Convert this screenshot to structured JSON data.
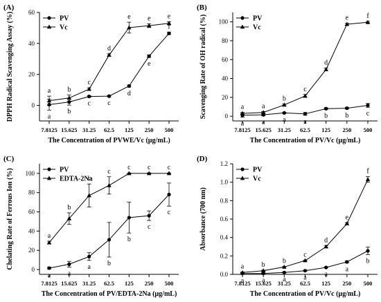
{
  "chart_data": [
    {
      "panel": "(A)",
      "type": "line",
      "categories": [
        "7.8125",
        "15.625",
        "31.25",
        "62.5",
        "125",
        "250",
        "500"
      ],
      "ylabel": "DPPH Radical Scavenging Assay (%)",
      "xlabel": "The Concentration of PVWE/Vc (µg/mL)",
      "ylim": [
        -10,
        60
      ],
      "yticks": [
        0,
        20,
        40,
        60
      ],
      "legend": "top-left",
      "series": [
        {
          "name": "PV",
          "marker": "circle",
          "values": [
            0.5,
            2.2,
            5.8,
            6.0,
            12.5,
            31.8,
            46.5
          ],
          "errors": [
            3.5,
            2.0,
            0.5,
            0.5,
            0.7,
            0.8,
            0.8
          ],
          "letters": [
            "a",
            "b",
            "c",
            "c",
            "d",
            "e",
            "f"
          ],
          "letter_pos": [
            "below",
            "below",
            "below",
            "below",
            "below",
            "below",
            "above"
          ]
        },
        {
          "name": "Vc",
          "marker": "triangle",
          "values": [
            3.0,
            4.8,
            10.5,
            32.5,
            50.2,
            51.5,
            53.0
          ],
          "errors": [
            3.0,
            2.0,
            0.8,
            0.8,
            3.5,
            1.2,
            1.0
          ],
          "letters": [
            "a",
            "b",
            "c",
            "d",
            "e",
            "e",
            "e"
          ],
          "letter_pos": [
            "above",
            "above",
            "above",
            "above",
            "above",
            "above",
            "above"
          ]
        }
      ]
    },
    {
      "panel": "(B)",
      "type": "line",
      "categories": [
        "7.8125",
        "15.625",
        "31.25",
        "62.5",
        "125",
        "250",
        "500"
      ],
      "ylabel": "Scavenging Rate of OH radical (%)",
      "xlabel": "The Concentration of PV/Vc (µg/mL)",
      "ylim": [
        -5,
        110
      ],
      "yticks": [
        0,
        20,
        40,
        60,
        80,
        100
      ],
      "legend": "top-left",
      "series": [
        {
          "name": "PV",
          "marker": "circle",
          "values": [
            1.0,
            1.5,
            3.5,
            2.5,
            8.0,
            8.5,
            11.5
          ],
          "errors": [
            2.0,
            1.0,
            0.5,
            1.5,
            1.0,
            1.0,
            2.0
          ],
          "letters": [
            "a",
            "a",
            "a",
            "a",
            "b",
            "b",
            "c"
          ],
          "letter_pos": [
            "below",
            "below",
            "below",
            "below",
            "below",
            "below",
            "below"
          ]
        },
        {
          "name": "Vc",
          "marker": "triangle",
          "values": [
            3.0,
            4.0,
            12.0,
            21.5,
            49.5,
            97.5,
            99.5
          ],
          "errors": [
            1.0,
            1.0,
            1.0,
            1.5,
            1.5,
            1.0,
            1.0
          ],
          "letters": [
            "a",
            "a",
            "b",
            "c",
            "d",
            "e",
            "f"
          ],
          "letter_pos": [
            "above",
            "above",
            "above",
            "above",
            "above",
            "above",
            "above"
          ]
        }
      ]
    },
    {
      "panel": "(C)",
      "type": "line",
      "categories": [
        "7.8125",
        "15.625",
        "31.25",
        "62.5",
        "125",
        "250",
        "500"
      ],
      "ylabel": "Chelating Rate of Ferrous Ion (%)",
      "xlabel": "The Concentration of PV/EDTA-2Na (µg/mL)",
      "ylim": [
        -5,
        110
      ],
      "yticks": [
        0,
        20,
        40,
        60,
        80,
        100
      ],
      "legend": "top-left",
      "series": [
        {
          "name": "PV",
          "marker": "circle",
          "values": [
            1.5,
            5.5,
            13.5,
            31.0,
            54.0,
            56.0,
            78.0
          ],
          "errors": [
            1.0,
            3.0,
            4.0,
            18.0,
            16.0,
            5.0,
            12.0
          ],
          "letters": [
            "a",
            "a",
            "a",
            "b",
            "b",
            "c",
            "c"
          ],
          "letter_pos": [
            "below",
            "below",
            "below",
            "below",
            "below",
            "below",
            "below"
          ]
        },
        {
          "name": "EDTA-2Na",
          "marker": "triangle",
          "values": [
            28.0,
            53.0,
            77.0,
            87.5,
            100.0,
            100.0,
            100.0
          ],
          "errors": [
            1.5,
            6.0,
            12.0,
            9.0,
            0.5,
            0.5,
            0.5
          ],
          "letters": [
            "a",
            "b",
            "c",
            "c",
            "c",
            "c",
            "c"
          ],
          "letter_pos": [
            "above",
            "above",
            "above",
            "above",
            "above",
            "above",
            "above"
          ]
        }
      ]
    },
    {
      "panel": "(D)",
      "type": "line",
      "categories": [
        "7.8125",
        "15.625",
        "31.25",
        "62.5",
        "125",
        "250",
        "500"
      ],
      "ylabel": "Absorbance (700 nm)",
      "xlabel": "The Concentration of PV/Vc (µg/mL)",
      "ylim": [
        0,
        1.2
      ],
      "yticks": [
        0.0,
        0.2,
        0.4,
        0.6,
        0.8,
        1.0,
        1.2
      ],
      "legend": "top-left",
      "series": [
        {
          "name": "PV",
          "marker": "circle",
          "values": [
            0.01,
            0.01,
            0.02,
            0.04,
            0.075,
            0.135,
            0.255
          ],
          "errors": [
            0.01,
            0.005,
            0.005,
            0.005,
            0.005,
            0.01,
            0.04
          ],
          "letters": [
            "a",
            "a",
            "a",
            "a",
            "a",
            "a",
            "b"
          ],
          "letter_pos": [
            "below",
            "below",
            "below",
            "below",
            "below",
            "below",
            "below"
          ]
        },
        {
          "name": "Vc",
          "marker": "triangle",
          "values": [
            0.02,
            0.04,
            0.08,
            0.15,
            0.3,
            0.55,
            1.03
          ],
          "errors": [
            0.005,
            0.005,
            0.005,
            0.005,
            0.01,
            0.01,
            0.03
          ],
          "letters": [
            "a",
            "b",
            "b",
            "c",
            "d",
            "e",
            "f"
          ],
          "letter_pos": [
            "above",
            "above",
            "above",
            "above",
            "above",
            "above",
            "above"
          ]
        }
      ]
    }
  ]
}
